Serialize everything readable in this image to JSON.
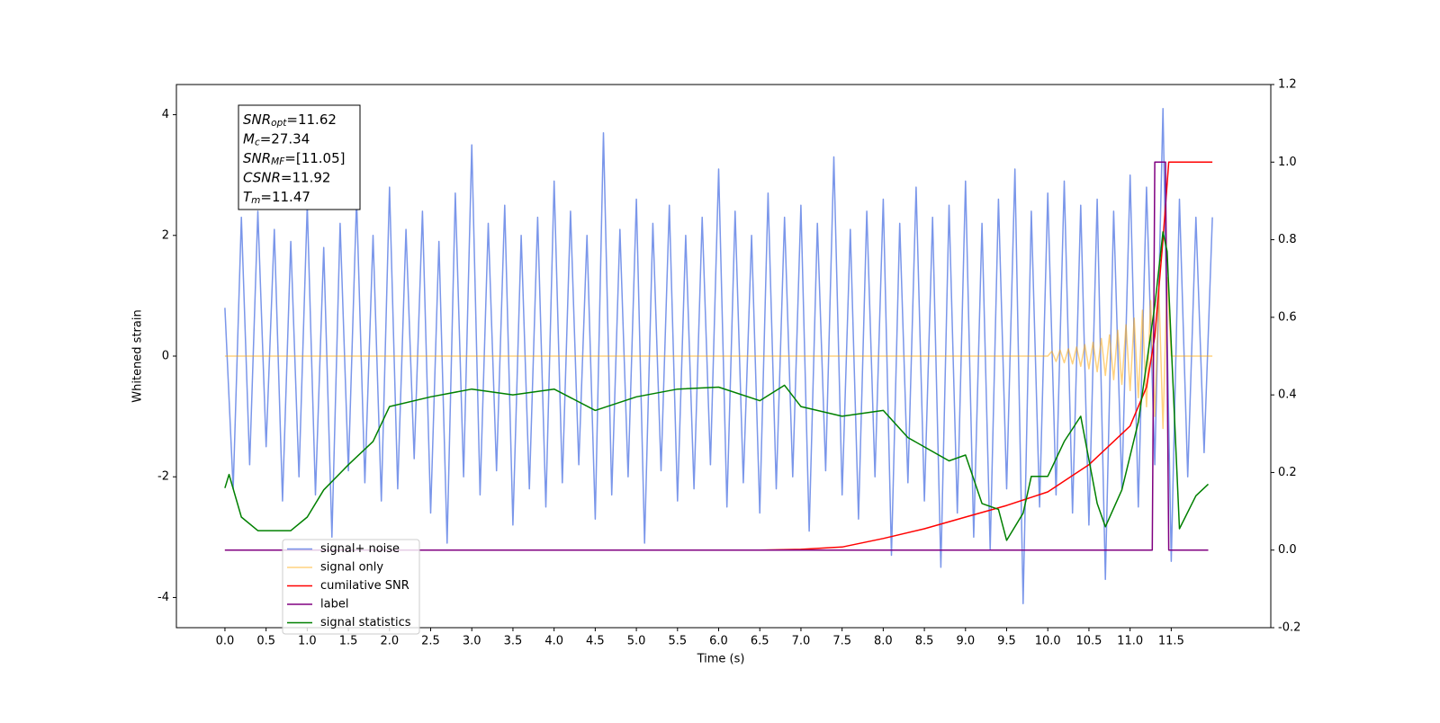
{
  "chart_data": {
    "type": "line",
    "xlabel": "Time (s)",
    "ylabel": "Whitened strain",
    "xlim": [
      -0.59,
      12.71
    ],
    "ylim": [
      -4.5,
      4.5
    ],
    "y2lim": [
      -0.2,
      1.2
    ],
    "xticks": [
      {
        "value": 0,
        "label": "0.0"
      },
      0.5,
      {
        "value": 1,
        "label": "1.0"
      },
      1.5,
      {
        "value": 2,
        "label": "2.0"
      },
      2.5,
      {
        "value": 3,
        "label": "3.0"
      },
      3.5,
      {
        "value": 4,
        "label": "4.0"
      },
      4.5,
      {
        "value": 5,
        "label": "5.0"
      },
      5.5,
      {
        "value": 6,
        "label": "6.0"
      },
      6.5,
      {
        "value": 7,
        "label": "7.0"
      },
      7.5,
      {
        "value": 8,
        "label": "8.0"
      },
      8.5,
      {
        "value": 9,
        "label": "9.0"
      },
      9.5,
      {
        "value": 10,
        "label": "10.0"
      },
      10.5,
      {
        "value": 11,
        "label": "11.0"
      },
      11.5
    ],
    "yticks": [
      -4,
      -2,
      0,
      2,
      4
    ],
    "y2ticks": [
      -0.2,
      {
        "value": 0,
        "label": "0.0"
      },
      0.2,
      0.4,
      0.6,
      0.8,
      {
        "value": 1,
        "label": "1.0"
      },
      1.2
    ],
    "legend": "lower left",
    "annotation": [
      {
        "text": "SNR",
        "sub": "opt",
        "value": "=11.62"
      },
      {
        "text": "M",
        "sub": "c",
        "value": "=27.34"
      },
      {
        "text": "SNR",
        "sub": "MF",
        "value": "=[11.05]"
      },
      {
        "text": "CSNR",
        "value": "=11.92"
      },
      {
        "text": "T",
        "sub": "m",
        "value": "=11.47"
      }
    ],
    "series": [
      {
        "name": "signal+ noise",
        "color": "#4169e1",
        "opacity": 0.7,
        "axis": "y",
        "x": [
          0,
          0.1,
          0.2,
          0.3,
          0.4,
          0.5,
          0.6,
          0.7,
          0.8,
          0.9,
          1,
          1.1,
          1.2,
          1.3,
          1.4,
          1.5,
          1.6,
          1.7,
          1.8,
          1.9,
          2,
          2.1,
          2.2,
          2.3,
          2.4,
          2.5,
          2.6,
          2.7,
          2.8,
          2.9,
          3,
          3.1,
          3.2,
          3.3,
          3.4,
          3.5,
          3.6,
          3.7,
          3.8,
          3.9,
          4,
          4.1,
          4.2,
          4.3,
          4.4,
          4.5,
          4.6,
          4.7,
          4.8,
          4.9,
          5,
          5.1,
          5.2,
          5.3,
          5.4,
          5.5,
          5.6,
          5.7,
          5.8,
          5.9,
          6,
          6.1,
          6.2,
          6.3,
          6.4,
          6.5,
          6.6,
          6.7,
          6.8,
          6.9,
          7,
          7.1,
          7.2,
          7.3,
          7.4,
          7.5,
          7.6,
          7.7,
          7.8,
          7.9,
          8,
          8.1,
          8.2,
          8.3,
          8.4,
          8.5,
          8.6,
          8.7,
          8.8,
          8.9,
          9,
          9.1,
          9.2,
          9.3,
          9.4,
          9.5,
          9.6,
          9.7,
          9.8,
          9.9,
          10,
          10.1,
          10.2,
          10.3,
          10.4,
          10.5,
          10.6,
          10.7,
          10.8,
          10.9,
          11,
          11.1,
          11.2,
          11.3,
          11.4,
          11.5,
          11.6,
          11.7,
          11.8,
          11.9,
          12
        ],
        "values": [
          0.8,
          -2.2,
          2.3,
          -1.8,
          2.4,
          -1.5,
          2.1,
          -2.4,
          1.9,
          -2.0,
          2.5,
          -2.3,
          1.8,
          -3.0,
          2.2,
          -1.9,
          2.6,
          -2.1,
          2.0,
          -2.4,
          2.8,
          -2.2,
          2.1,
          -1.7,
          2.4,
          -2.6,
          1.9,
          -3.1,
          2.7,
          -2.0,
          3.5,
          -2.3,
          2.2,
          -1.9,
          2.5,
          -2.8,
          2.0,
          -2.2,
          2.3,
          -2.5,
          2.9,
          -2.1,
          2.4,
          -1.8,
          2.0,
          -2.7,
          3.7,
          -2.3,
          2.1,
          -2.0,
          2.6,
          -3.1,
          2.2,
          -1.9,
          2.5,
          -2.4,
          2.0,
          -2.2,
          2.3,
          -1.8,
          3.1,
          -2.5,
          2.4,
          -2.1,
          2.0,
          -2.6,
          2.7,
          -2.2,
          2.3,
          -2.0,
          2.5,
          -2.9,
          2.2,
          -1.9,
          3.3,
          -2.3,
          2.1,
          -2.7,
          2.4,
          -2.0,
          2.6,
          -3.3,
          2.2,
          -2.1,
          2.8,
          -2.4,
          2.3,
          -3.5,
          2.5,
          -2.6,
          2.9,
          -3.0,
          2.2,
          -3.2,
          2.6,
          -2.2,
          3.1,
          -4.1,
          2.4,
          -2.5,
          2.7,
          -2.3,
          2.9,
          -2.6,
          2.5,
          -2.8,
          2.6,
          -3.7,
          2.4,
          -2.2,
          3.0,
          -2.5,
          2.8,
          -1.8,
          4.1,
          -3.4,
          2.6,
          -2.0,
          2.3,
          -1.6,
          2.3
        ]
      },
      {
        "name": "signal only",
        "color": "#ffa500",
        "opacity": 0.5,
        "axis": "y",
        "x": [
          0,
          10,
          10.05,
          10.1,
          10.15,
          10.2,
          10.25,
          10.3,
          10.35,
          10.4,
          10.45,
          10.5,
          10.55,
          10.6,
          10.65,
          10.7,
          10.75,
          10.8,
          10.85,
          10.9,
          10.95,
          11,
          11.05,
          11.1,
          11.15,
          11.2,
          11.25,
          11.3,
          11.35,
          11.4,
          11.45,
          11.5,
          12
        ],
        "values": [
          0,
          0,
          0.08,
          -0.09,
          0.1,
          -0.11,
          0.12,
          -0.13,
          0.15,
          -0.17,
          0.19,
          -0.21,
          0.23,
          -0.26,
          0.29,
          -0.32,
          0.35,
          -0.39,
          0.43,
          -0.47,
          0.52,
          -0.57,
          0.63,
          -0.69,
          0.76,
          -0.84,
          0.92,
          -1.0,
          1.1,
          -1.2,
          1.3,
          0,
          0
        ]
      },
      {
        "name": "cumilative SNR",
        "color": "#ff0000",
        "opacity": 1,
        "axis": "y2",
        "x": [
          0,
          6.5,
          7,
          7.5,
          8,
          8.5,
          9,
          9.5,
          10,
          10.5,
          11,
          11.2,
          11.3,
          11.4,
          11.47,
          12
        ],
        "values": [
          0,
          0,
          0.002,
          0.008,
          0.03,
          0.055,
          0.085,
          0.115,
          0.15,
          0.22,
          0.32,
          0.42,
          0.55,
          0.8,
          1.0,
          1.0
        ]
      },
      {
        "name": "label",
        "color": "#800080",
        "opacity": 1,
        "axis": "y2",
        "x": [
          0,
          11.27,
          11.3,
          11.43,
          11.47,
          11.95
        ],
        "values": [
          0,
          0,
          1,
          1,
          0,
          0
        ]
      },
      {
        "name": "signal statistics",
        "color": "#008000",
        "opacity": 1,
        "axis": "y2",
        "x": [
          0,
          0.05,
          0.2,
          0.4,
          0.8,
          1.0,
          1.2,
          1.5,
          1.8,
          2.0,
          2.5,
          3.0,
          3.5,
          4.0,
          4.5,
          5.0,
          5.5,
          6.0,
          6.5,
          6.8,
          7.0,
          7.5,
          8.0,
          8.3,
          8.8,
          9.0,
          9.2,
          9.4,
          9.5,
          9.7,
          9.8,
          10.0,
          10.2,
          10.4,
          10.6,
          10.7,
          10.9,
          11.1,
          11.3,
          11.4,
          11.45,
          11.6,
          11.8,
          11.95
        ],
        "values": [
          0.16,
          0.195,
          0.085,
          0.05,
          0.05,
          0.085,
          0.155,
          0.22,
          0.28,
          0.37,
          0.395,
          0.415,
          0.4,
          0.415,
          0.36,
          0.395,
          0.415,
          0.42,
          0.385,
          0.425,
          0.37,
          0.345,
          0.36,
          0.29,
          0.23,
          0.245,
          0.12,
          0.105,
          0.025,
          0.095,
          0.19,
          0.19,
          0.28,
          0.345,
          0.12,
          0.06,
          0.155,
          0.33,
          0.63,
          0.82,
          0.77,
          0.055,
          0.14,
          0.17
        ]
      }
    ]
  }
}
